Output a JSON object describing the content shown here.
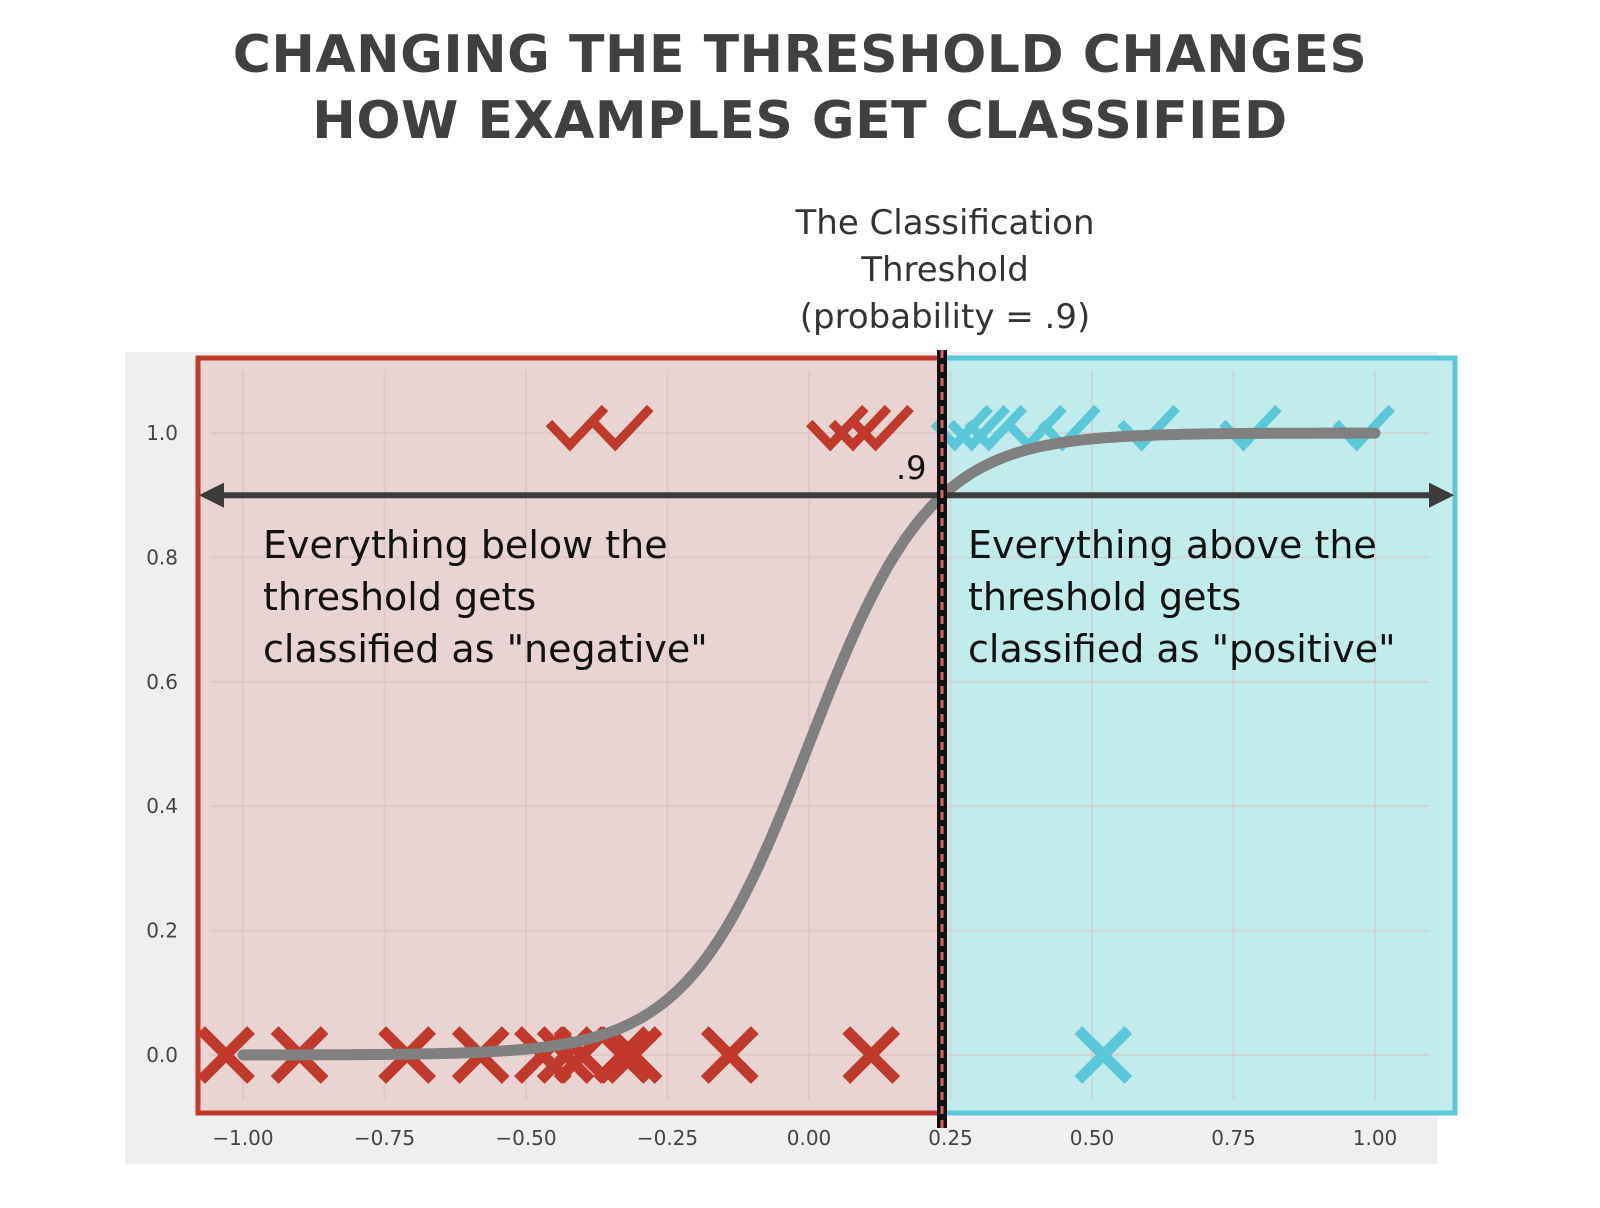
{
  "title_lines": [
    "CHANGING THE THRESHOLD CHANGES",
    "HOW EXAMPLES GET CLASSIFIED"
  ],
  "colors": {
    "negative": "#c0392b",
    "negative_fill": "#e8cfcf",
    "positive": "#5bc8d8",
    "positive_fill": "#bdebeb",
    "curve": "#808080",
    "arrow": "#3c3c3c",
    "grid": "#dcc4c4",
    "plot_bg": "#efefef"
  },
  "threshold": {
    "label_lines": [
      "The Classification",
      "Threshold",
      "(probability = .9)"
    ],
    "value_label": ".9",
    "probability": 0.9,
    "x": 0.235
  },
  "negative_region": {
    "text_lines": [
      "Everything below the",
      "threshold gets",
      "classified as \"negative\""
    ]
  },
  "positive_region": {
    "text_lines": [
      "Everything above the",
      "threshold gets",
      "classified as \"positive\""
    ]
  },
  "chart_data": {
    "type": "scatter",
    "title": "CHANGING THE THRESHOLD CHANGES HOW EXAMPLES GET CLASSIFIED",
    "xlabel": "",
    "ylabel": "",
    "xlim": [
      -1.1,
      1.1
    ],
    "ylim": [
      -0.08,
      1.1
    ],
    "x_ticks": [
      -1.0,
      -0.75,
      -0.5,
      -0.25,
      0.0,
      0.25,
      0.5,
      0.75,
      1.0
    ],
    "x_tick_labels": [
      "−1.00",
      "−0.75",
      "−0.50",
      "−0.25",
      "0.00",
      "0.25",
      "0.50",
      "0.75",
      "1.00"
    ],
    "y_ticks": [
      0.0,
      0.2,
      0.4,
      0.6,
      0.8,
      1.0
    ],
    "y_tick_labels": [
      "0.0",
      "0.2",
      "0.4",
      "0.6",
      "0.8",
      "1.0"
    ],
    "grid": true,
    "curve": {
      "type": "logistic",
      "x_range": [
        -1.0,
        1.0
      ],
      "midpoint": 0.0,
      "steepness": 9.3
    },
    "series": [
      {
        "name": "",
        "marker": "check",
        "label": 1,
        "class": "negative",
        "x": [
          -0.41,
          -0.33,
          0.05,
          0.09,
          0.13
        ]
      },
      {
        "name": "",
        "marker": "check",
        "label": 1,
        "class": "positive",
        "x": [
          0.27,
          0.3,
          0.33,
          0.4,
          0.46,
          0.6,
          0.78,
          0.98
        ]
      },
      {
        "name": "",
        "marker": "x",
        "label": 0,
        "class": "negative",
        "x": [
          -1.03,
          -0.9,
          -0.71,
          -0.58,
          -0.47,
          -0.43,
          -0.4,
          -0.33,
          -0.31,
          -0.14,
          0.11
        ]
      },
      {
        "name": "",
        "marker": "x",
        "label": 0,
        "class": "positive",
        "x": [
          0.52
        ]
      }
    ]
  }
}
